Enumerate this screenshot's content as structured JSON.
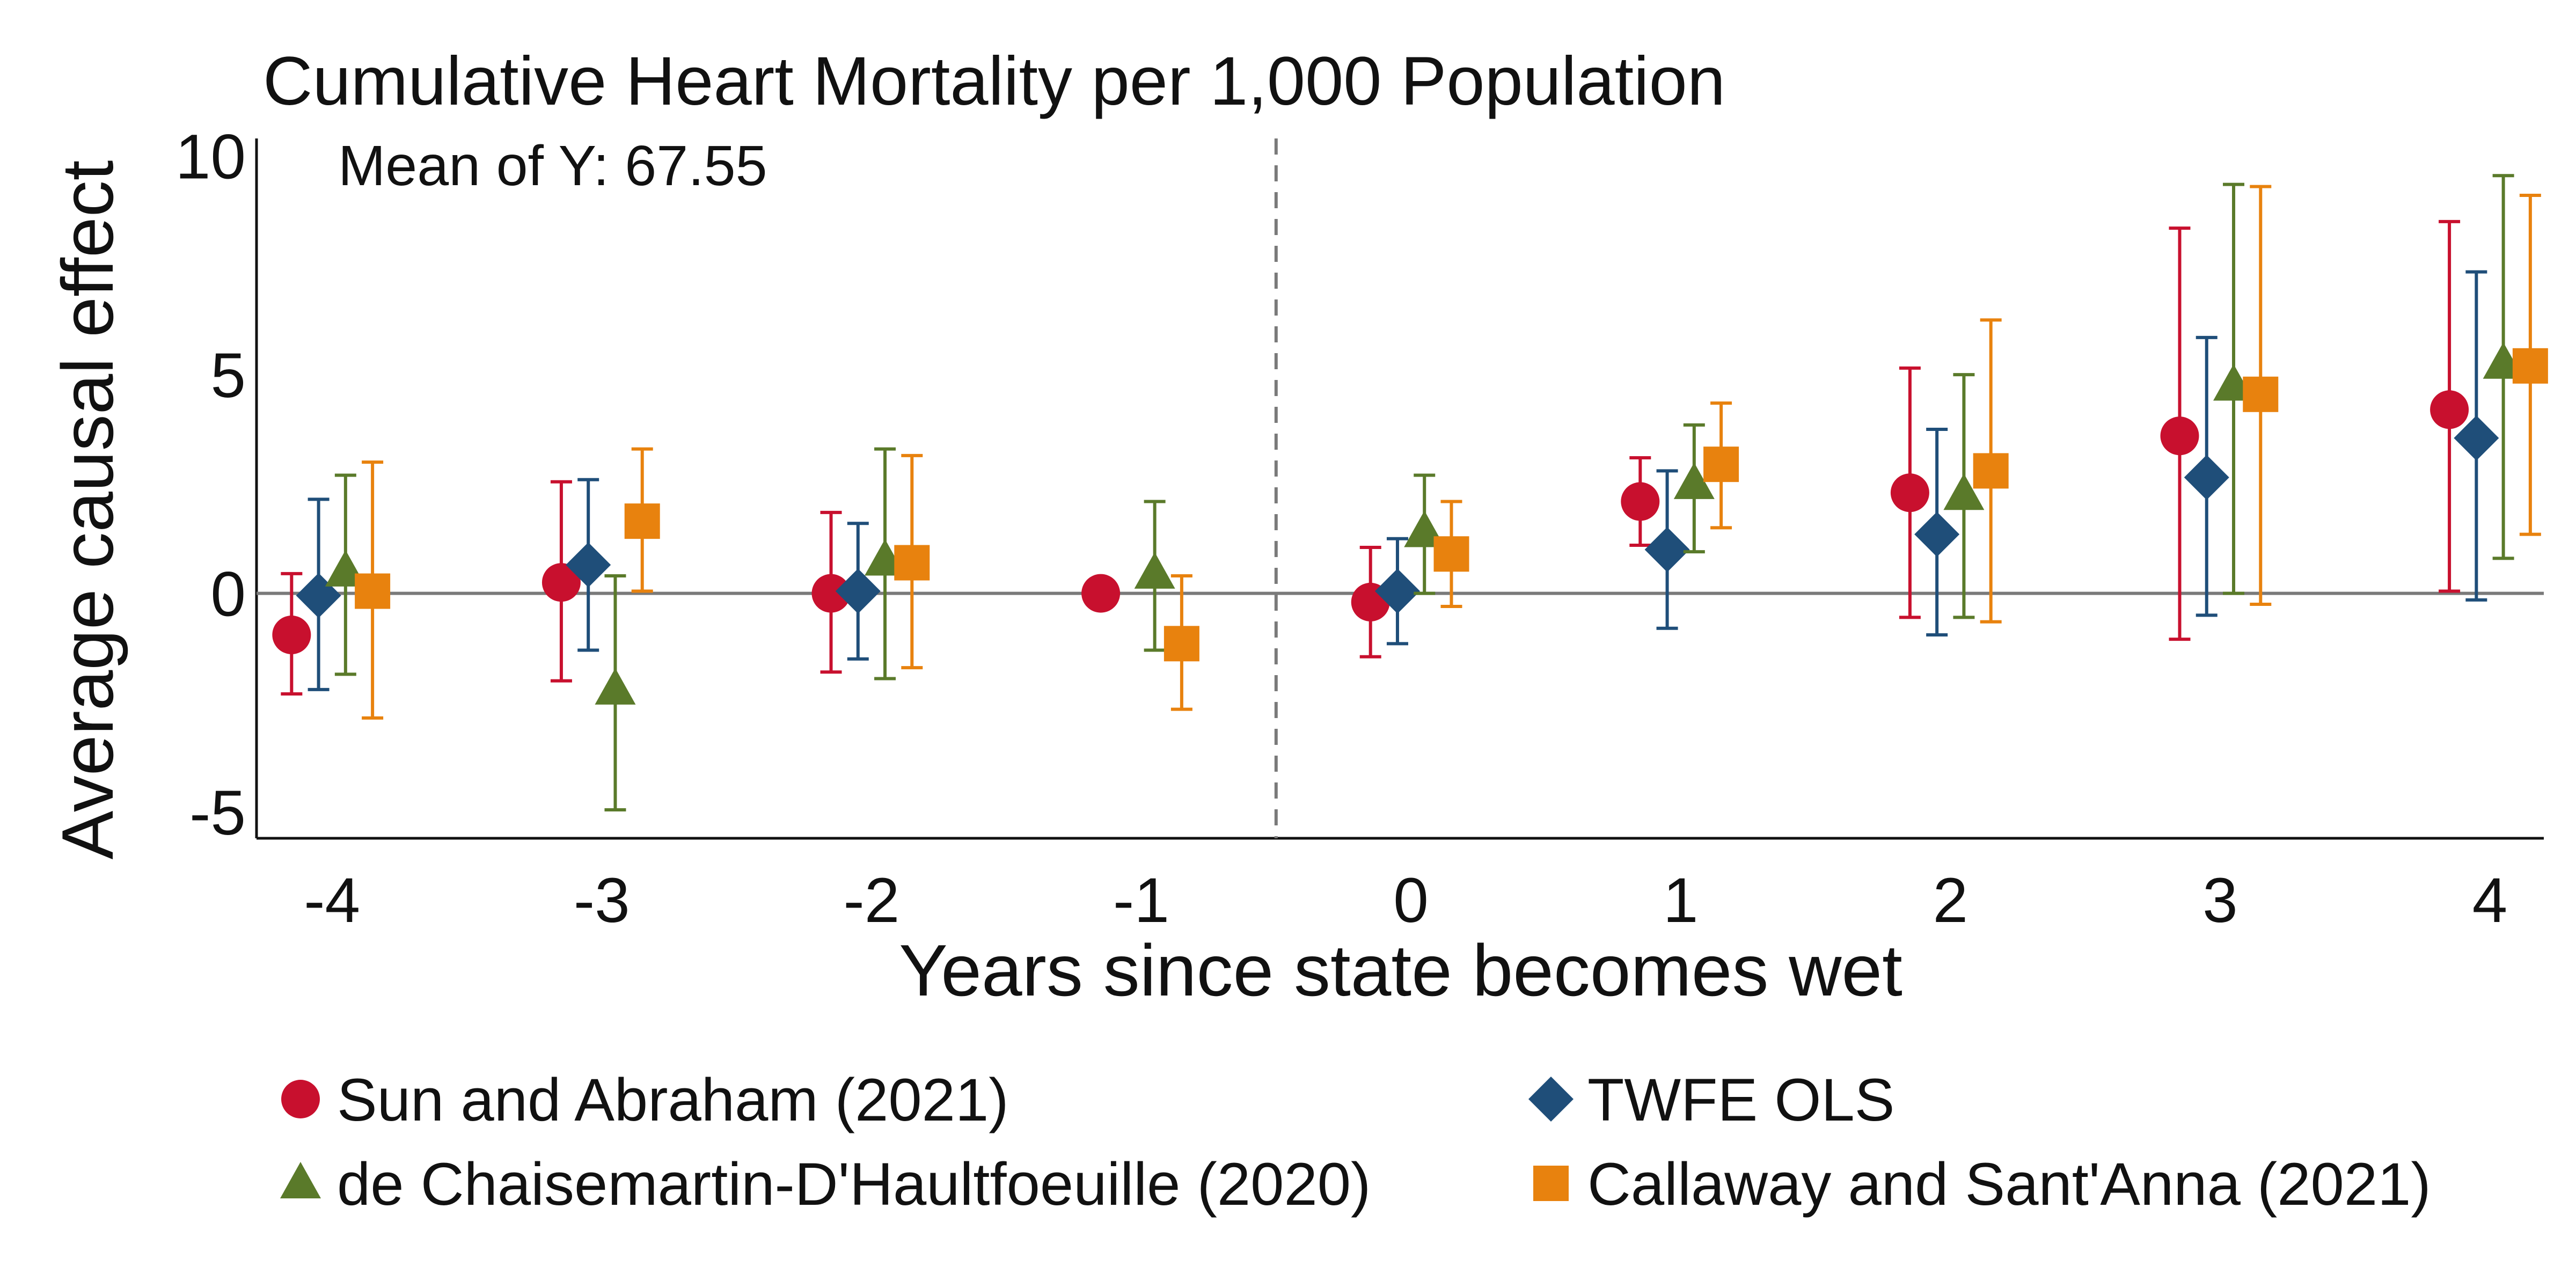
{
  "chart_data": {
    "type": "scatter",
    "subtype": "event-study coefficient plot with 95% confidence intervals",
    "title": "Cumulative Heart Mortality per 1,000 Population",
    "annotation": "Mean of Y: 67.55",
    "xlabel": "Years since state becomes wet",
    "ylabel": "Average causal effect",
    "x": [
      -4,
      -3,
      -2,
      -1,
      0,
      1,
      2,
      3,
      4
    ],
    "xticks": [
      "-4",
      "-3",
      "-2",
      "-1",
      "0",
      "1",
      "2",
      "3",
      "4"
    ],
    "yticks": [
      "-5",
      "0",
      "5",
      "10"
    ],
    "ytick_values": [
      -5,
      0,
      5,
      10
    ],
    "ylim": [
      -5.6,
      10.4
    ],
    "xlim": [
      -4.28,
      4.2
    ],
    "reference_line_y": 0,
    "vertical_dashed_line_x": -0.5,
    "grid": false,
    "legend_position": "bottom",
    "series": [
      {
        "name": "Sun and Abraham (2021)",
        "marker": "circle",
        "color": "#c8102e",
        "offset": -0.15,
        "estimates": [
          -0.95,
          0.25,
          0.0,
          0.0,
          -0.2,
          2.1,
          2.3,
          3.6,
          4.2
        ],
        "ci_low": [
          -2.3,
          -2.0,
          -1.8,
          null,
          -1.45,
          1.1,
          -0.55,
          -1.05,
          0.05
        ],
        "ci_high": [
          0.45,
          2.55,
          1.85,
          null,
          1.05,
          3.1,
          5.15,
          8.35,
          8.5
        ]
      },
      {
        "name": "TWFE OLS",
        "marker": "diamond",
        "color": "#1f4e79",
        "offset": -0.05,
        "estimates": [
          -0.05,
          0.65,
          0.05,
          null,
          0.05,
          1.0,
          1.35,
          2.65,
          3.55
        ],
        "ci_low": [
          -2.2,
          -1.3,
          -1.5,
          null,
          -1.15,
          -0.8,
          -0.95,
          -0.5,
          -0.15
        ],
        "ci_high": [
          2.15,
          2.6,
          1.6,
          null,
          1.25,
          2.8,
          3.75,
          5.85,
          7.35
        ]
      },
      {
        "name": "de Chaisemartin-D'Haultfoeuille (2020)",
        "marker": "triangle",
        "color": "#5a7a2a",
        "offset": 0.05,
        "estimates": [
          0.5,
          -2.2,
          0.75,
          0.45,
          1.4,
          2.5,
          2.25,
          4.75,
          5.25
        ],
        "ci_low": [
          -1.85,
          -4.95,
          -1.95,
          -1.3,
          0.0,
          0.95,
          -0.55,
          0.0,
          0.8
        ],
        "ci_high": [
          2.7,
          0.4,
          3.3,
          2.1,
          2.7,
          3.85,
          5.0,
          9.35,
          9.55
        ]
      },
      {
        "name": "Callaway and Sant'Anna (2021)",
        "marker": "square",
        "color": "#e8820e",
        "offset": 0.15,
        "estimates": [
          0.05,
          1.65,
          0.7,
          -1.15,
          0.9,
          2.95,
          2.8,
          4.55,
          5.2
        ],
        "ci_low": [
          -2.85,
          0.05,
          -1.7,
          -2.65,
          -0.3,
          1.5,
          -0.65,
          -0.25,
          1.35
        ],
        "ci_high": [
          3.0,
          3.3,
          3.15,
          0.4,
          2.1,
          4.35,
          6.25,
          9.3,
          9.1
        ]
      }
    ]
  }
}
